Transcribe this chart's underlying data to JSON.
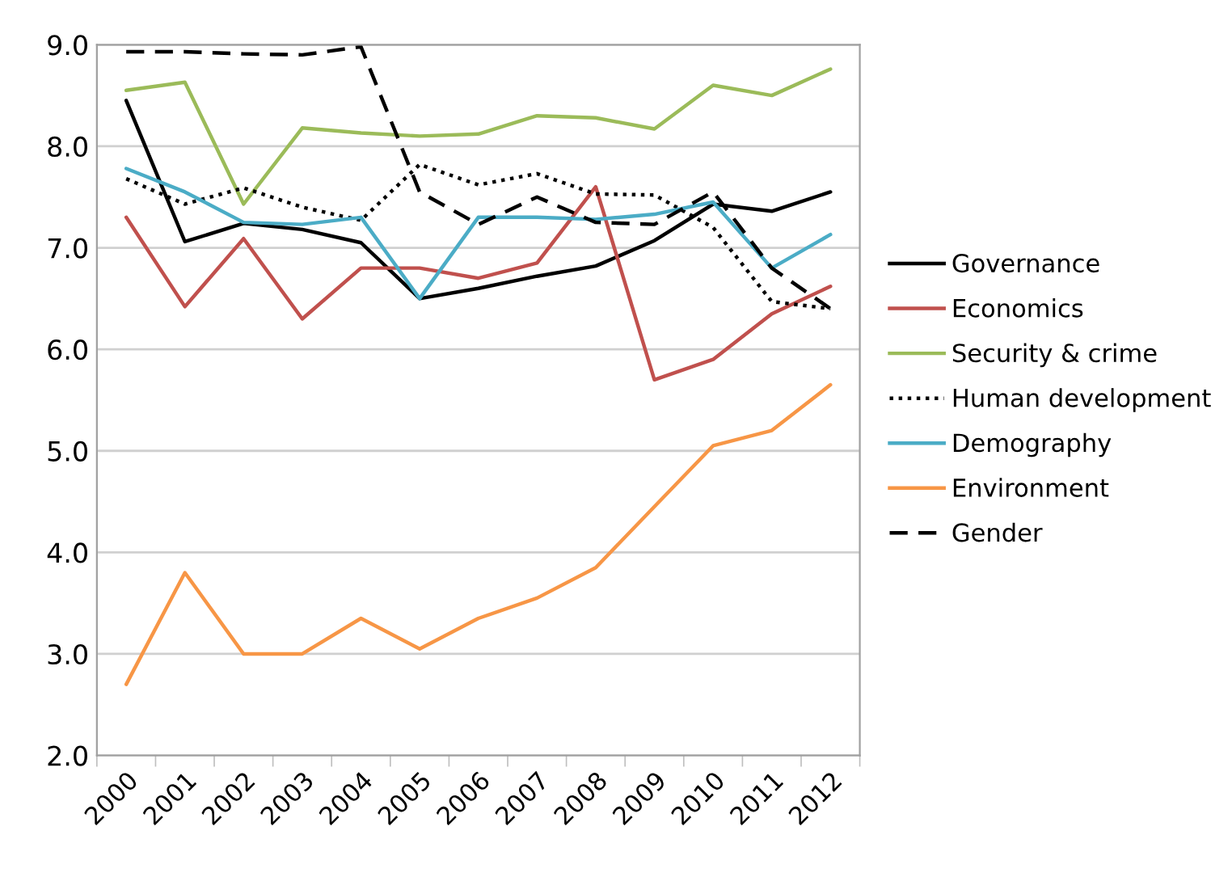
{
  "chart_data": {
    "type": "line",
    "categories": [
      "2000",
      "2001",
      "2002",
      "2003",
      "2004",
      "2005",
      "2006",
      "2007",
      "2008",
      "2009",
      "2010",
      "2011",
      "2012"
    ],
    "ylim": [
      2.0,
      9.0
    ],
    "yticks": [
      {
        "value": 2.0,
        "label": "2.0"
      },
      {
        "value": 3.0,
        "label": "3.0"
      },
      {
        "value": 4.0,
        "label": "4.0"
      },
      {
        "value": 5.0,
        "label": "5.0"
      },
      {
        "value": 6.0,
        "label": "6.0"
      },
      {
        "value": 7.0,
        "label": "7.0"
      },
      {
        "value": 8.0,
        "label": "8.0"
      },
      {
        "value": 9.0,
        "label": "9.0"
      }
    ],
    "grid": "y",
    "legend": "right",
    "marker": "none",
    "series": [
      {
        "name": "Governance",
        "color": "#000000",
        "line_style": "solid",
        "values": [
          8.45,
          7.06,
          7.24,
          7.18,
          7.05,
          6.5,
          6.6,
          6.72,
          6.82,
          7.07,
          7.43,
          7.36,
          7.55
        ]
      },
      {
        "name": "Economics",
        "color": "#c0504d",
        "line_style": "solid",
        "values": [
          7.3,
          6.42,
          7.09,
          6.3,
          6.8,
          6.8,
          6.7,
          6.85,
          7.6,
          5.7,
          5.9,
          6.35,
          6.62
        ]
      },
      {
        "name": "Security & crime",
        "color": "#9bbb59",
        "line_style": "solid",
        "values": [
          8.55,
          8.63,
          7.43,
          8.18,
          8.13,
          8.1,
          8.12,
          8.3,
          8.28,
          8.17,
          8.6,
          8.5,
          8.76
        ]
      },
      {
        "name": "Human development",
        "color": "#000000",
        "line_style": "dotted",
        "values": [
          7.68,
          7.43,
          7.59,
          7.4,
          7.27,
          7.82,
          7.62,
          7.73,
          7.53,
          7.52,
          7.2,
          6.47,
          6.4
        ]
      },
      {
        "name": "Demography",
        "color": "#4bacc6",
        "line_style": "solid",
        "values": [
          7.78,
          7.55,
          7.25,
          7.23,
          7.3,
          6.5,
          7.3,
          7.3,
          7.28,
          7.33,
          7.45,
          6.8,
          7.13
        ]
      },
      {
        "name": "Environment",
        "color": "#f79646",
        "line_style": "solid",
        "values": [
          2.7,
          3.8,
          3.0,
          3.0,
          3.35,
          3.05,
          3.35,
          3.55,
          3.85,
          4.45,
          5.05,
          5.2,
          5.65
        ]
      },
      {
        "name": "Gender",
        "color": "#000000",
        "line_style": "dashed",
        "values": [
          8.93,
          8.93,
          8.91,
          8.9,
          8.98,
          7.55,
          7.23,
          7.5,
          7.25,
          7.23,
          7.55,
          6.8,
          6.4
        ]
      }
    ]
  }
}
